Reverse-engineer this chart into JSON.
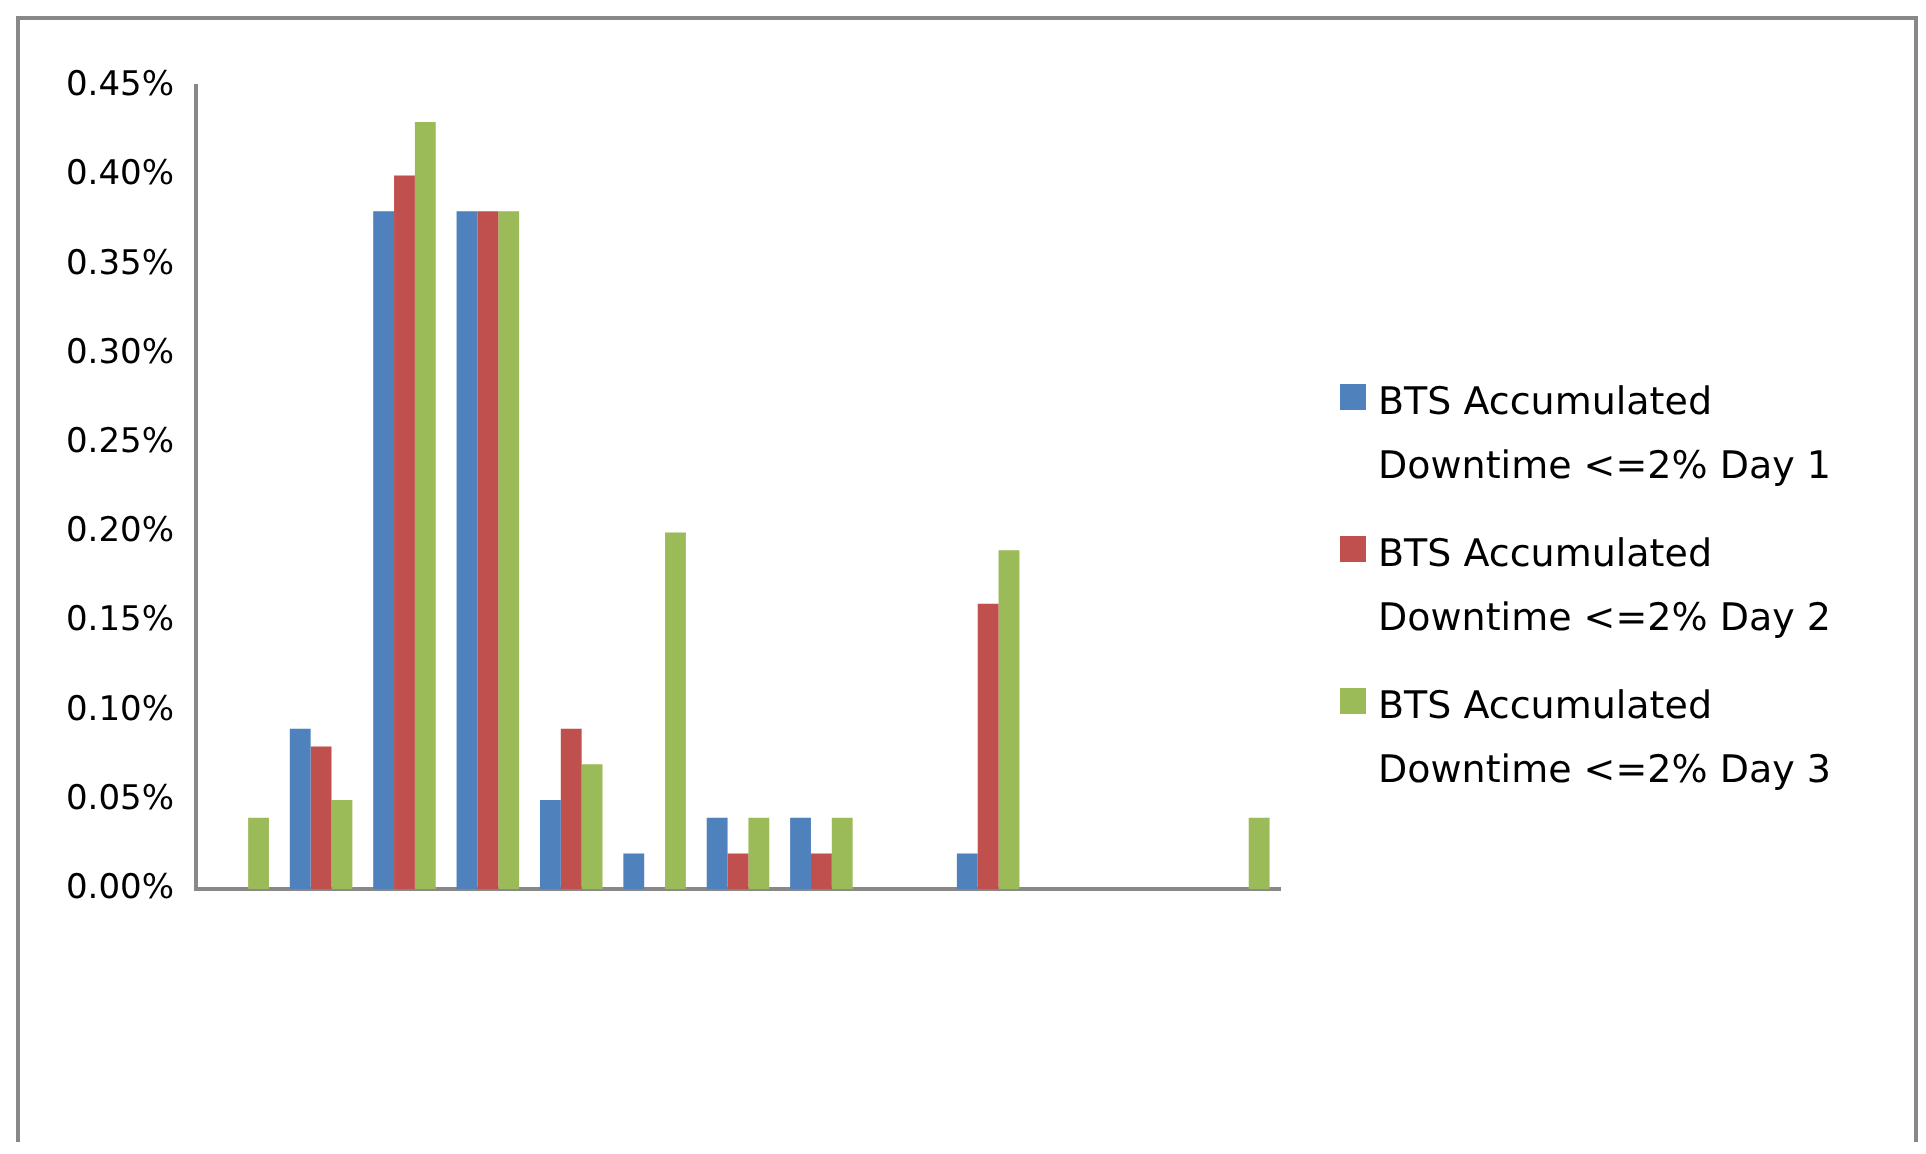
{
  "chart_data": {
    "type": "bar",
    "categories": [
      null,
      null,
      null,
      null,
      null,
      null,
      null,
      null,
      null,
      null,
      null,
      null,
      null
    ],
    "series": [
      {
        "name": "BTS Accumulated Downtime <=2% Day 1",
        "color": "#4f81bd",
        "values": [
          0,
          0.09,
          0.38,
          0.38,
          0.05,
          0.02,
          0.04,
          0.04,
          0,
          0.02,
          0,
          0,
          0
        ]
      },
      {
        "name": "BTS Accumulated Downtime <=2% Day 2",
        "color": "#c0504d",
        "values": [
          0,
          0.08,
          0.4,
          0.38,
          0.09,
          0,
          0.02,
          0.02,
          0,
          0.16,
          0,
          0,
          0
        ]
      },
      {
        "name": "BTS Accumulated Downtime <=2% Day 3",
        "color": "#9bbb59",
        "values": [
          0.04,
          0.05,
          0.43,
          0.38,
          0.07,
          0.2,
          0.04,
          0.04,
          0,
          0.19,
          0,
          0,
          0.04
        ]
      }
    ],
    "ylim": [
      0,
      0.45
    ],
    "yticks": [
      {
        "value": 0,
        "label": "0.00%"
      },
      {
        "value": 0.05,
        "label": "0.05%"
      },
      {
        "value": 0.1,
        "label": "0.10%"
      },
      {
        "value": 0.15,
        "label": "0.15%"
      },
      {
        "value": 0.2,
        "label": "0.20%"
      },
      {
        "value": 0.25,
        "label": "0.25%"
      },
      {
        "value": 0.3,
        "label": "0.30%"
      },
      {
        "value": 0.35,
        "label": "0.35%"
      },
      {
        "value": 0.4,
        "label": "0.40%"
      },
      {
        "value": 0.45,
        "label": "0.45%"
      }
    ],
    "grid": false,
    "legend": "right"
  }
}
